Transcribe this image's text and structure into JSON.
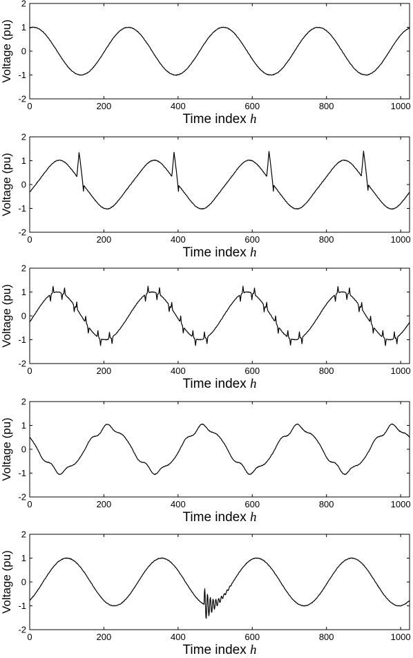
{
  "chart_data": [
    {
      "type": "line",
      "title": "",
      "xlabel_text": "Time index ",
      "xlabel_var": "h",
      "ylabel": "Voltage (pu)",
      "xlim": [
        0,
        1024
      ],
      "ylim": [
        -2,
        2
      ],
      "xticks": [
        0,
        200,
        400,
        600,
        800,
        1000
      ],
      "yticks": [
        -2,
        -1,
        0,
        1,
        2
      ],
      "grid": false,
      "series": [
        {
          "period_samples": 256,
          "amplitude_pu": 1.0,
          "value_at_h0": 0.95,
          "extrema": [
            {
              "h": 10,
              "v": 1.0
            },
            {
              "h": 140,
              "v": -1.0
            },
            {
              "h": 266,
              "v": 1.0
            },
            {
              "h": 394,
              "v": -1.0
            },
            {
              "h": 522,
              "v": 1.0
            },
            {
              "h": 650,
              "v": -1.0
            },
            {
              "h": 778,
              "v": 1.0
            },
            {
              "h": 906,
              "v": -1.0
            }
          ],
          "disturbance": "none"
        }
      ]
    },
    {
      "type": "line",
      "title": "",
      "xlabel_text": "Time index ",
      "xlabel_var": "h",
      "ylabel": "Voltage (pu)",
      "xlim": [
        0,
        1024
      ],
      "ylim": [
        -2,
        2
      ],
      "xticks": [
        0,
        200,
        400,
        600,
        800,
        1000
      ],
      "yticks": [
        -2,
        -1,
        0,
        1,
        2
      ],
      "grid": false,
      "series": [
        {
          "period_samples": 256,
          "amplitude_pu": 1.0,
          "value_at_h0": -0.55,
          "extrema": [
            {
              "h": 80,
              "v": 1.0
            },
            {
              "h": 215,
              "v": -1.0
            },
            {
              "h": 340,
              "v": 1.0
            },
            {
              "h": 470,
              "v": -1.0
            },
            {
              "h": 600,
              "v": 1.0
            },
            {
              "h": 725,
              "v": -1.0
            },
            {
              "h": 855,
              "v": 1.0
            },
            {
              "h": 985,
              "v": -1.0
            }
          ],
          "disturbance": "notch_spike",
          "spikes": [
            {
              "h": 133,
              "v": 1.35
            },
            {
              "h": 389,
              "v": 1.35
            },
            {
              "h": 645,
              "v": 1.4
            },
            {
              "h": 900,
              "v": 1.4
            }
          ]
        }
      ]
    },
    {
      "type": "line",
      "title": "",
      "xlabel_text": "Time index ",
      "xlabel_var": "h",
      "ylabel": "Voltage (pu)",
      "xlim": [
        0,
        1024
      ],
      "ylim": [
        -2,
        2
      ],
      "xticks": [
        0,
        200,
        400,
        600,
        800,
        1000
      ],
      "yticks": [
        -2,
        -1,
        0,
        1,
        2
      ],
      "grid": false,
      "series": [
        {
          "period_samples": 256,
          "amplitude_pu": 1.0,
          "value_at_h0": -0.3,
          "extrema": [
            {
              "h": 75,
              "v": 1.0
            },
            {
              "h": 205,
              "v": -1.0
            },
            {
              "h": 330,
              "v": 1.0
            },
            {
              "h": 460,
              "v": -1.0
            },
            {
              "h": 588,
              "v": 1.0
            },
            {
              "h": 716,
              "v": -1.0
            },
            {
              "h": 844,
              "v": 1.0
            },
            {
              "h": 972,
              "v": -1.0
            }
          ],
          "disturbance": "notches",
          "notch_offsets_per_cycle": [
            -19,
            -12,
            12,
            19,
            45,
            52,
            76,
            83,
            109,
            116,
            140,
            147
          ]
        }
      ]
    },
    {
      "type": "line",
      "title": "",
      "xlabel_text": "Time index ",
      "xlabel_var": "h",
      "ylabel": "Voltage (pu)",
      "xlim": [
        0,
        1024
      ],
      "ylim": [
        -2,
        2
      ],
      "xticks": [
        0,
        200,
        400,
        600,
        800,
        1000
      ],
      "yticks": [
        -2,
        -1,
        0,
        1,
        2
      ],
      "grid": false,
      "series": [
        {
          "period_samples": 256,
          "amplitude_pu": 1.0,
          "value_at_h0": 0.5,
          "extrema": [
            {
              "h": 85,
              "v": -1.0
            },
            {
              "h": 213,
              "v": 1.0
            },
            {
              "h": 341,
              "v": -1.0
            },
            {
              "h": 469,
              "v": 1.0
            },
            {
              "h": 597,
              "v": -1.0
            },
            {
              "h": 725,
              "v": 1.0
            },
            {
              "h": 853,
              "v": -1.0
            },
            {
              "h": 981,
              "v": 1.0
            }
          ],
          "disturbance": "harmonics"
        }
      ]
    },
    {
      "type": "line",
      "title": "",
      "xlabel_text": "Time index ",
      "xlabel_var": "h",
      "ylabel": "Voltage (pu)",
      "xlim": [
        0,
        1024
      ],
      "ylim": [
        -2,
        2
      ],
      "xticks": [
        0,
        200,
        400,
        600,
        800,
        1000
      ],
      "yticks": [
        -2,
        -1,
        0,
        1,
        2
      ],
      "grid": false,
      "series": [
        {
          "period_samples": 256,
          "amplitude_pu": 1.0,
          "value_at_h0": -0.7,
          "extrema": [
            {
              "h": 100,
              "v": 1.0
            },
            {
              "h": 230,
              "v": -1.0
            },
            {
              "h": 358,
              "v": 1.0
            },
            {
              "h": 485,
              "v": -1.0
            },
            {
              "h": 613,
              "v": 1.0
            },
            {
              "h": 741,
              "v": -1.0
            },
            {
              "h": 869,
              "v": 1.0
            },
            {
              "h": 997,
              "v": -1.0
            }
          ],
          "disturbance": "oscillatory_transient",
          "transient": {
            "start_h": 470,
            "end_h": 545,
            "min_v": -1.75,
            "max_v": -0.1
          }
        }
      ]
    }
  ]
}
